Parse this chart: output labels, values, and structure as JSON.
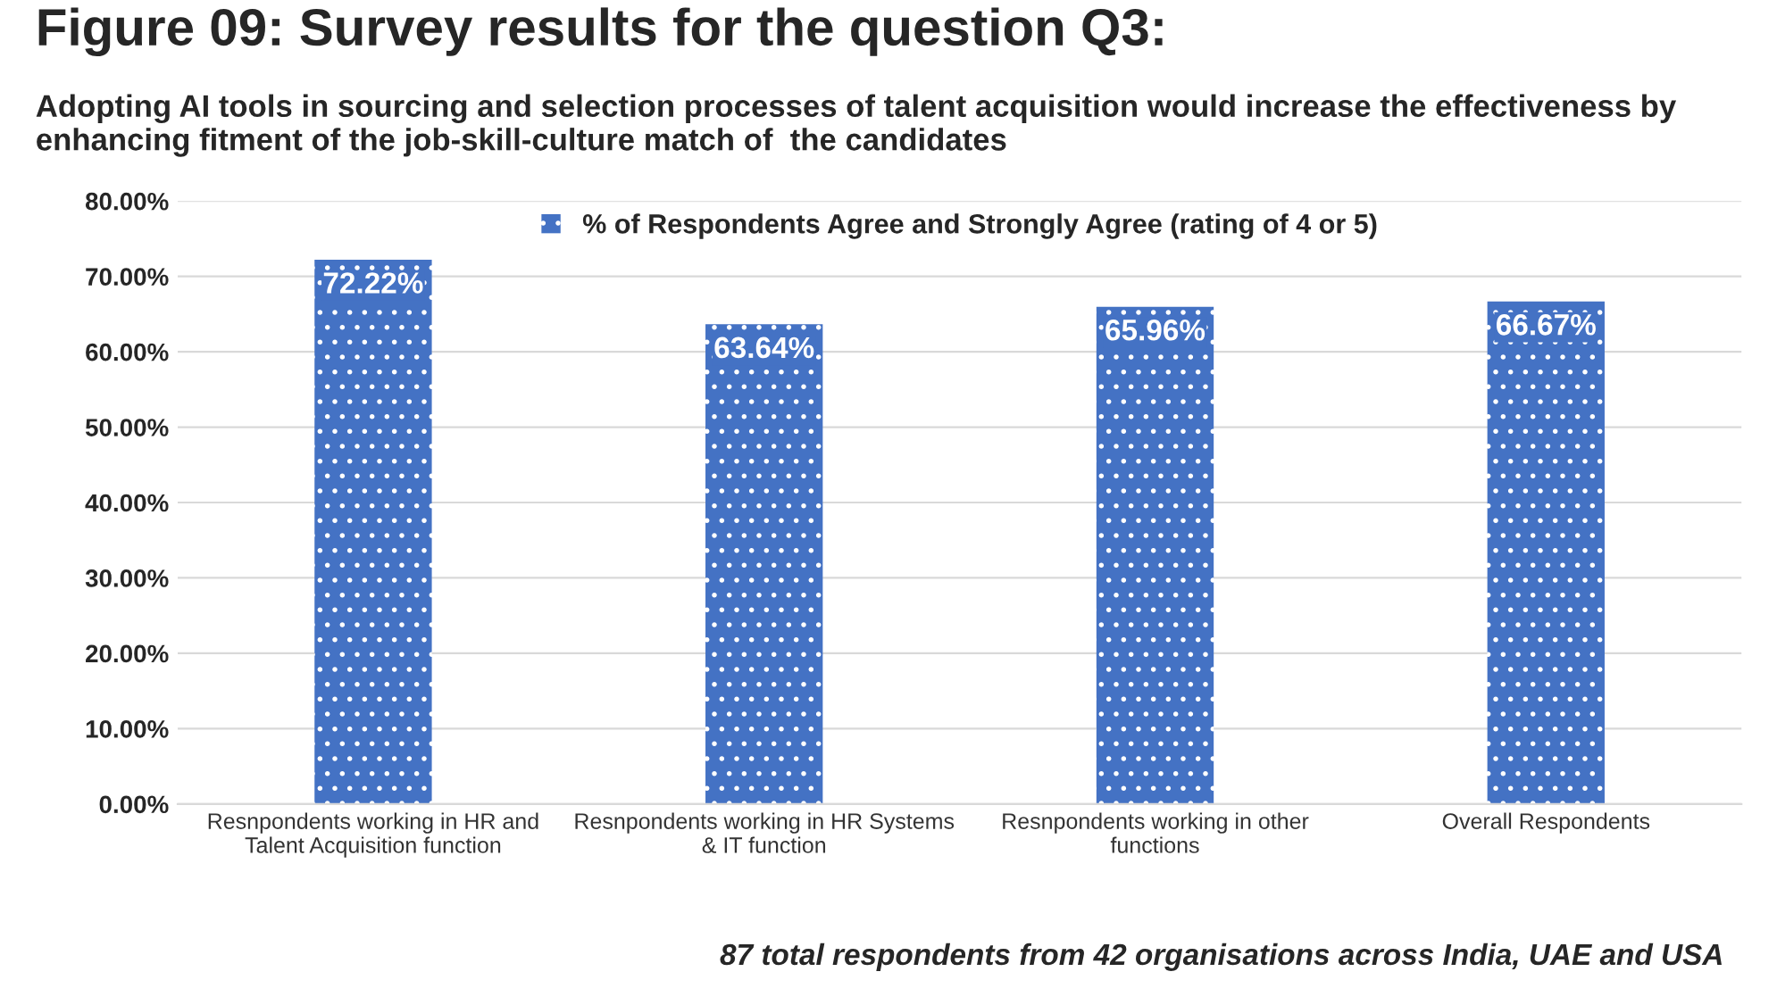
{
  "chart_data": {
    "type": "bar",
    "title": "Figure 09: Survey results for the question Q3:",
    "subtitle": "Adopting AI tools in sourcing and selection processes of talent acquisition would increase the effectiveness by enhancing fitment of the job-skill-culture match of  the candidates",
    "categories": [
      "Resnpondents working in HR and\nTalent Acquisition function",
      "Resnpondents working in HR Systems\n& IT function",
      "Resnpondents working in other\nfunctions",
      "Overall Respondents"
    ],
    "series": [
      {
        "name": "% of Respondents Agree and Strongly Agree (rating of 4 or 5)",
        "color": "#4472c4",
        "values": [
          72.22,
          63.64,
          65.96,
          66.67
        ],
        "value_labels": [
          "72.22%",
          "63.64%",
          "65.96%",
          "66.67%"
        ]
      }
    ],
    "ylim": [
      0,
      80
    ],
    "yticks": [
      {
        "value": 0,
        "label": "0.00%"
      },
      {
        "value": 10,
        "label": "10.00%"
      },
      {
        "value": 20,
        "label": "20.00%"
      },
      {
        "value": 30,
        "label": "30.00%"
      },
      {
        "value": 40,
        "label": "40.00%"
      },
      {
        "value": 50,
        "label": "50.00%"
      },
      {
        "value": 60,
        "label": "60.00%"
      },
      {
        "value": 70,
        "label": "70.00%"
      },
      {
        "value": 80,
        "label": "80.00%"
      }
    ],
    "grid": "y",
    "legend": "top",
    "annotations": [
      "87 total respondents from 42 organisations across India, UAE and USA"
    ]
  }
}
